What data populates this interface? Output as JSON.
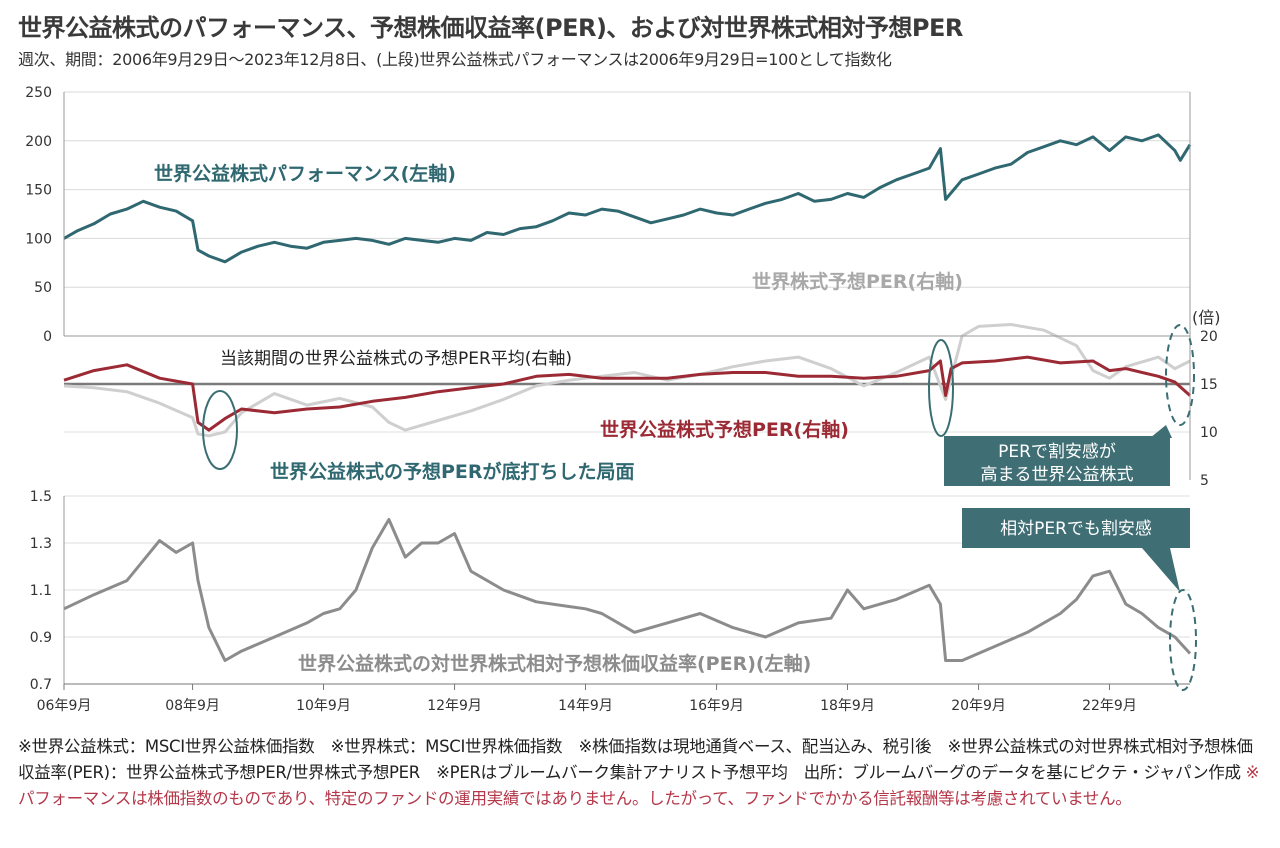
{
  "header": {
    "title": "世界公益株式のパフォーマンス、予想株価収益率(PER)、および対世界株式相対予想PER",
    "subtitle": "週次、期間：2006年9月29日～2023年12月8日、(上段)世界公益株式パフォーマンスは2006年9月29日=100として指数化"
  },
  "colors": {
    "performance": "#2f6870",
    "utilities_per": "#9b2a35",
    "world_per": "#cfcfcf",
    "average_line": "#7a7a7a",
    "relative_per": "#8c8c8c",
    "callout_bg": "#3f6e74",
    "ellipse": "#3a6e73",
    "warning_text": "#b5384a"
  },
  "chart_data": [
    {
      "type": "line",
      "title": "",
      "axis": "left",
      "ylim": [
        0,
        250
      ],
      "yticks": [
        "250",
        "200",
        "150",
        "100",
        "50",
        "0"
      ],
      "series": [
        {
          "name": "世界公益株式パフォーマンス(左軸)",
          "x": [
            "2006-09",
            "2006-12",
            "2007-03",
            "2007-06",
            "2007-09",
            "2007-12",
            "2008-03",
            "2008-06",
            "2008-09",
            "2008-10",
            "2008-12",
            "2009-03",
            "2009-06",
            "2009-09",
            "2009-12",
            "2010-03",
            "2010-06",
            "2010-09",
            "2010-12",
            "2011-03",
            "2011-06",
            "2011-09",
            "2011-12",
            "2012-03",
            "2012-06",
            "2012-09",
            "2012-12",
            "2013-03",
            "2013-06",
            "2013-09",
            "2013-12",
            "2014-03",
            "2014-06",
            "2014-09",
            "2014-12",
            "2015-03",
            "2015-06",
            "2015-09",
            "2015-12",
            "2016-03",
            "2016-06",
            "2016-09",
            "2016-12",
            "2017-03",
            "2017-06",
            "2017-09",
            "2017-12",
            "2018-03",
            "2018-06",
            "2018-09",
            "2018-12",
            "2019-03",
            "2019-06",
            "2019-09",
            "2019-12",
            "2020-02",
            "2020-03",
            "2020-06",
            "2020-09",
            "2020-12",
            "2021-03",
            "2021-06",
            "2021-09",
            "2021-12",
            "2022-03",
            "2022-06",
            "2022-09",
            "2022-12",
            "2023-03",
            "2023-06",
            "2023-09",
            "2023-10",
            "2023-12"
          ],
          "values": [
            100,
            108,
            115,
            125,
            130,
            138,
            132,
            128,
            118,
            88,
            82,
            76,
            86,
            92,
            96,
            92,
            90,
            96,
            98,
            100,
            98,
            94,
            100,
            98,
            96,
            100,
            98,
            106,
            104,
            110,
            112,
            118,
            126,
            124,
            130,
            128,
            122,
            116,
            120,
            124,
            130,
            126,
            124,
            130,
            136,
            140,
            146,
            138,
            140,
            146,
            142,
            152,
            160,
            166,
            172,
            192,
            140,
            160,
            166,
            172,
            176,
            188,
            194,
            200,
            196,
            204,
            190,
            204,
            200,
            206,
            190,
            180,
            196
          ]
        }
      ]
    },
    {
      "type": "line",
      "title": "",
      "axis": "right",
      "ylim": [
        5,
        20
      ],
      "yticks": [
        "20",
        "15",
        "10",
        "5"
      ],
      "unit_label": "(倍)",
      "average_label": "当該期間の世界公益株式の予想PER平均(右軸)",
      "average_value": 15,
      "series": [
        {
          "name": "世界株式予想PER(右軸)",
          "x": [
            "2006-09",
            "2007-03",
            "2007-09",
            "2008-03",
            "2008-09",
            "2008-10",
            "2008-12",
            "2009-03",
            "2009-06",
            "2009-12",
            "2010-06",
            "2010-12",
            "2011-06",
            "2011-09",
            "2011-12",
            "2012-06",
            "2012-12",
            "2013-06",
            "2013-12",
            "2014-06",
            "2014-12",
            "2015-06",
            "2015-12",
            "2016-06",
            "2016-12",
            "2017-06",
            "2017-12",
            "2018-06",
            "2018-12",
            "2019-06",
            "2019-12",
            "2020-03",
            "2020-06",
            "2020-09",
            "2021-03",
            "2021-09",
            "2022-03",
            "2022-06",
            "2022-09",
            "2022-12",
            "2023-06",
            "2023-09",
            "2023-12"
          ],
          "values": [
            14.8,
            14.6,
            14.2,
            13.0,
            11.5,
            9.8,
            9.6,
            10.0,
            12.0,
            14.0,
            12.8,
            13.5,
            12.6,
            11.0,
            10.2,
            11.2,
            12.2,
            13.4,
            14.8,
            15.4,
            15.8,
            16.2,
            15.4,
            16.0,
            16.8,
            17.4,
            17.8,
            16.6,
            14.8,
            16.2,
            17.8,
            13.4,
            20.0,
            21.0,
            21.2,
            20.6,
            19.0,
            16.4,
            15.6,
            16.8,
            17.8,
            16.6,
            17.4
          ]
        },
        {
          "name": "世界公益株式予想PER(右軸)",
          "x": [
            "2006-09",
            "2007-03",
            "2007-09",
            "2008-03",
            "2008-09",
            "2008-10",
            "2008-12",
            "2009-03",
            "2009-06",
            "2009-12",
            "2010-06",
            "2010-12",
            "2011-06",
            "2011-12",
            "2012-06",
            "2012-12",
            "2013-06",
            "2013-12",
            "2014-06",
            "2014-12",
            "2015-06",
            "2015-12",
            "2016-06",
            "2016-12",
            "2017-06",
            "2017-12",
            "2018-06",
            "2018-12",
            "2019-06",
            "2019-12",
            "2020-02",
            "2020-03",
            "2020-04",
            "2020-06",
            "2020-12",
            "2021-06",
            "2021-12",
            "2022-06",
            "2022-09",
            "2022-12",
            "2023-06",
            "2023-09",
            "2023-12"
          ],
          "values": [
            15.4,
            16.4,
            17.0,
            15.6,
            15.0,
            11.0,
            10.2,
            11.4,
            12.4,
            12.0,
            12.4,
            12.6,
            13.2,
            13.6,
            14.2,
            14.6,
            15.0,
            15.8,
            16.0,
            15.6,
            15.6,
            15.6,
            16.0,
            16.2,
            16.2,
            15.8,
            15.8,
            15.6,
            15.8,
            16.4,
            17.4,
            13.8,
            16.6,
            17.2,
            17.4,
            17.8,
            17.2,
            17.4,
            16.4,
            16.6,
            15.8,
            15.2,
            13.8
          ]
        }
      ]
    },
    {
      "type": "line",
      "title": "",
      "axis": "left",
      "ylim": [
        0.7,
        1.5
      ],
      "yticks": [
        "1.5",
        "1.3",
        "1.1",
        "0.9",
        "0.7"
      ],
      "xticks": [
        "06年9月",
        "08年9月",
        "10年9月",
        "12年9月",
        "14年9月",
        "16年9月",
        "18年9月",
        "20年9月",
        "22年9月"
      ],
      "series": [
        {
          "name": "世界公益株式の対世界株式相対予想株価収益率(PER)(左軸)",
          "x": [
            "2006-09",
            "2007-03",
            "2007-09",
            "2008-03",
            "2008-06",
            "2008-09",
            "2008-10",
            "2008-12",
            "2009-03",
            "2009-06",
            "2009-12",
            "2010-06",
            "2010-09",
            "2010-12",
            "2011-03",
            "2011-06",
            "2011-09",
            "2011-12",
            "2012-03",
            "2012-06",
            "2012-09",
            "2012-12",
            "2013-06",
            "2013-12",
            "2014-06",
            "2014-09",
            "2014-12",
            "2015-06",
            "2015-12",
            "2016-06",
            "2016-12",
            "2017-06",
            "2017-12",
            "2018-06",
            "2018-09",
            "2018-12",
            "2019-06",
            "2019-12",
            "2020-02",
            "2020-03",
            "2020-06",
            "2020-12",
            "2021-06",
            "2021-12",
            "2022-03",
            "2022-06",
            "2022-09",
            "2022-12",
            "2023-03",
            "2023-06",
            "2023-09",
            "2023-12"
          ],
          "values": [
            1.02,
            1.08,
            1.14,
            1.31,
            1.26,
            1.3,
            1.14,
            0.94,
            0.8,
            0.84,
            0.9,
            0.96,
            1.0,
            1.02,
            1.1,
            1.28,
            1.4,
            1.24,
            1.3,
            1.3,
            1.34,
            1.18,
            1.1,
            1.05,
            1.03,
            1.02,
            1.0,
            0.92,
            0.96,
            1.0,
            0.94,
            0.9,
            0.96,
            0.98,
            1.1,
            1.02,
            1.06,
            1.12,
            1.04,
            0.8,
            0.8,
            0.86,
            0.92,
            1.0,
            1.06,
            1.16,
            1.18,
            1.04,
            1.0,
            0.94,
            0.9,
            0.83
          ]
        }
      ]
    }
  ],
  "annotations": {
    "performance_label": "世界公益株式パフォーマンス(左軸)",
    "world_per_label": "世界株式予想PER(右軸)",
    "utilities_per_label": "世界公益株式予想PER(右軸)",
    "bottom_label": "世界公益株式の予想PERが底打ちした局面",
    "relative_label": "世界公益株式の対世界株式相対予想株価収益率(PER)(左軸)",
    "callout_per_line1": "PERで割安感が",
    "callout_per_line2": "高まる世界公益株式",
    "callout_relative": "相対PERでも割安感"
  },
  "notes": {
    "text": "※世界公益株式：MSCI世界公益株価指数　※世界株式：MSCI世界株価指数　※株価指数は現地通貨ベース、配当込み、税引後　※世界公益株式の対世界株式相対予想株価収益率(PER)：世界公益株式予想PER/世界株式予想PER　※PERはブルームバーク集計アナリスト予想平均　出所：ブルームバーグのデータを基にピクテ・ジャパン作成",
    "warning": "※パフォーマンスは株価指数のものであり、特定のファンドの運用実績ではありません。したがって、ファンドでかかる信託報酬等は考慮されていません。"
  }
}
